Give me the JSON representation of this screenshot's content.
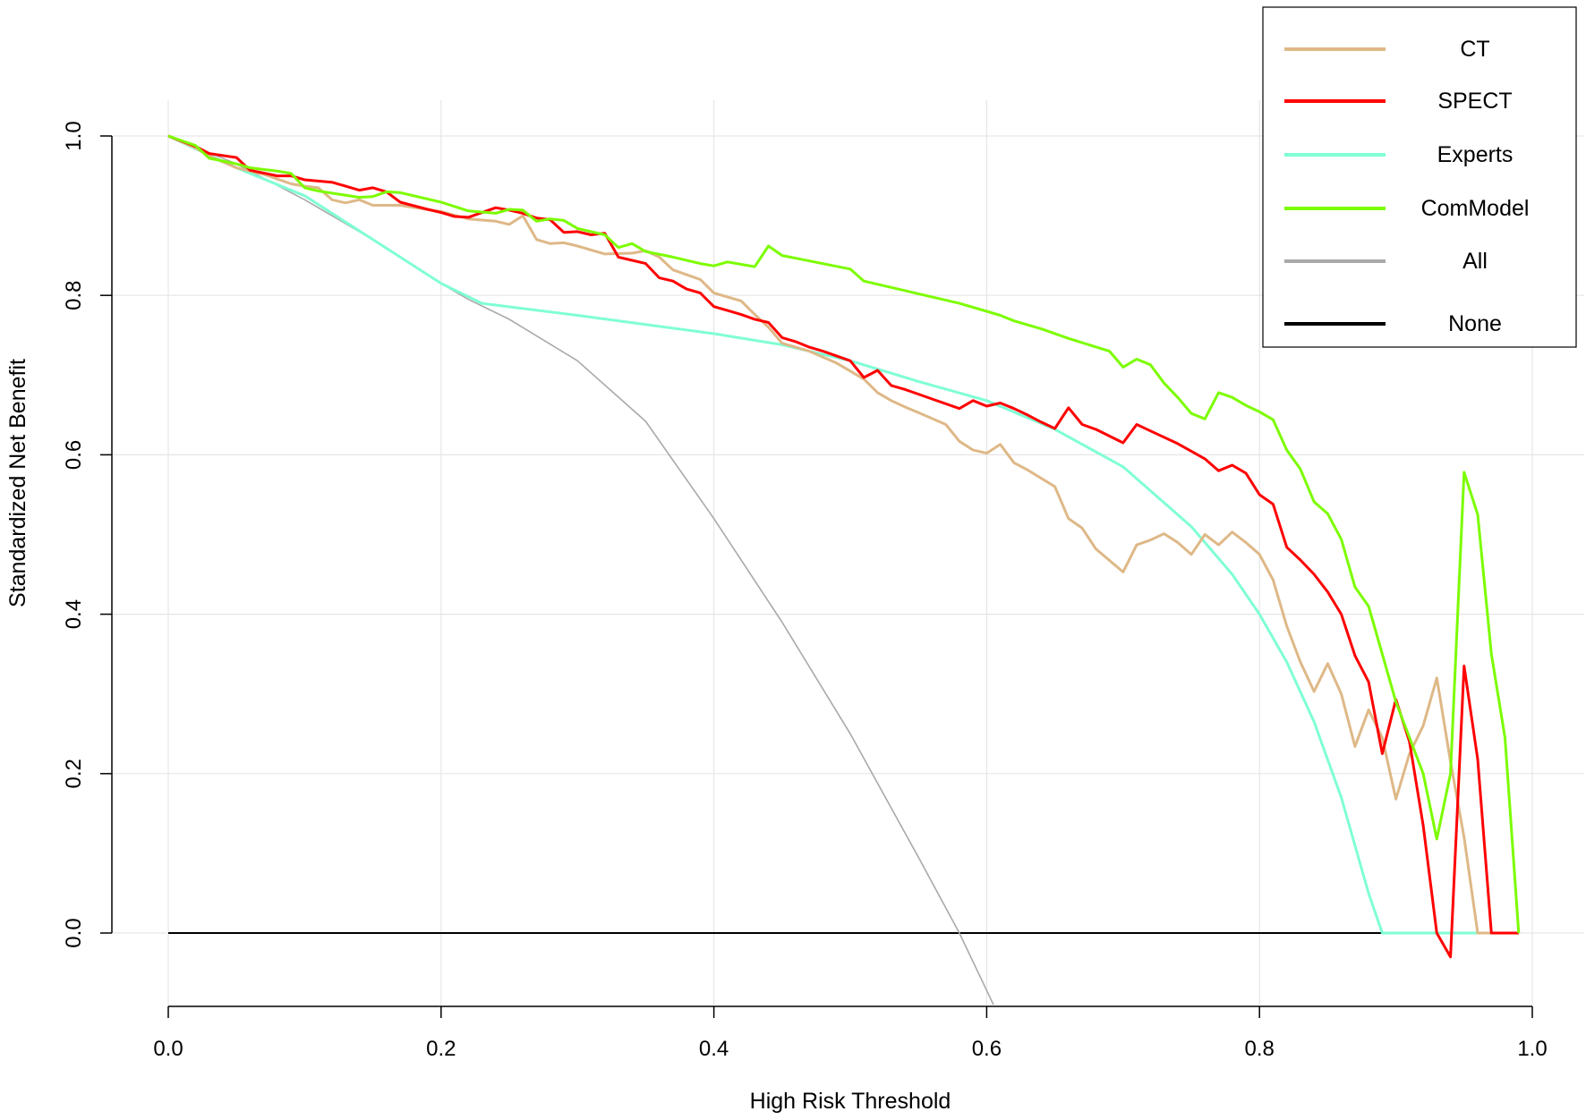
{
  "chart_data": {
    "type": "line",
    "title": "",
    "xlabel": "High Risk Threshold",
    "ylabel": "Standardized Net Benefit",
    "xlim": [
      0.0,
      1.0
    ],
    "ylim": [
      -0.1,
      1.05
    ],
    "x_ticks": [
      "0.0",
      "0.2",
      "0.4",
      "0.6",
      "0.8",
      "1.0"
    ],
    "y_ticks": [
      "0.0",
      "0.2",
      "0.4",
      "0.6",
      "0.8",
      "1.0"
    ],
    "grid": true,
    "legend_position": "top-right",
    "series": [
      {
        "name": "CT",
        "color": "#DEB887",
        "points": [
          [
            0.0,
            1.0
          ],
          [
            0.02,
            0.985
          ],
          [
            0.03,
            0.975
          ],
          [
            0.05,
            0.96
          ],
          [
            0.07,
            0.952
          ],
          [
            0.09,
            0.94
          ],
          [
            0.1,
            0.937
          ],
          [
            0.11,
            0.935
          ],
          [
            0.12,
            0.92
          ],
          [
            0.13,
            0.916
          ],
          [
            0.14,
            0.92
          ],
          [
            0.15,
            0.913
          ],
          [
            0.17,
            0.913
          ],
          [
            0.2,
            0.905
          ],
          [
            0.22,
            0.896
          ],
          [
            0.24,
            0.893
          ],
          [
            0.25,
            0.889
          ],
          [
            0.26,
            0.9
          ],
          [
            0.27,
            0.87
          ],
          [
            0.28,
            0.865
          ],
          [
            0.29,
            0.866
          ],
          [
            0.3,
            0.862
          ],
          [
            0.32,
            0.852
          ],
          [
            0.34,
            0.853
          ],
          [
            0.35,
            0.856
          ],
          [
            0.36,
            0.848
          ],
          [
            0.37,
            0.832
          ],
          [
            0.39,
            0.82
          ],
          [
            0.4,
            0.803
          ],
          [
            0.42,
            0.793
          ],
          [
            0.43,
            0.776
          ],
          [
            0.44,
            0.76
          ],
          [
            0.45,
            0.74
          ],
          [
            0.47,
            0.73
          ],
          [
            0.49,
            0.715
          ],
          [
            0.5,
            0.705
          ],
          [
            0.51,
            0.695
          ],
          [
            0.52,
            0.678
          ],
          [
            0.53,
            0.668
          ],
          [
            0.54,
            0.66
          ],
          [
            0.55,
            0.653
          ],
          [
            0.57,
            0.638
          ],
          [
            0.58,
            0.617
          ],
          [
            0.59,
            0.606
          ],
          [
            0.6,
            0.602
          ],
          [
            0.61,
            0.613
          ],
          [
            0.62,
            0.59
          ],
          [
            0.63,
            0.581
          ],
          [
            0.65,
            0.56
          ],
          [
            0.66,
            0.52
          ],
          [
            0.67,
            0.508
          ],
          [
            0.68,
            0.482
          ],
          [
            0.7,
            0.453
          ],
          [
            0.71,
            0.487
          ],
          [
            0.72,
            0.493
          ],
          [
            0.73,
            0.501
          ],
          [
            0.74,
            0.49
          ],
          [
            0.75,
            0.475
          ],
          [
            0.76,
            0.5
          ],
          [
            0.77,
            0.487
          ],
          [
            0.78,
            0.503
          ],
          [
            0.79,
            0.49
          ],
          [
            0.8,
            0.475
          ],
          [
            0.81,
            0.443
          ],
          [
            0.82,
            0.385
          ],
          [
            0.83,
            0.34
          ],
          [
            0.84,
            0.303
          ],
          [
            0.85,
            0.338
          ],
          [
            0.86,
            0.3
          ],
          [
            0.87,
            0.234
          ],
          [
            0.88,
            0.28
          ],
          [
            0.89,
            0.245
          ],
          [
            0.9,
            0.168
          ],
          [
            0.91,
            0.225
          ],
          [
            0.92,
            0.26
          ],
          [
            0.93,
            0.32
          ],
          [
            0.94,
            0.215
          ],
          [
            0.95,
            0.12
          ],
          [
            0.96,
            0.0
          ],
          [
            0.99,
            0.0
          ]
        ]
      },
      {
        "name": "SPECT",
        "color": "#FF0000",
        "points": [
          [
            0.0,
            1.0
          ],
          [
            0.02,
            0.987
          ],
          [
            0.03,
            0.978
          ],
          [
            0.05,
            0.973
          ],
          [
            0.06,
            0.957
          ],
          [
            0.08,
            0.95
          ],
          [
            0.09,
            0.95
          ],
          [
            0.1,
            0.945
          ],
          [
            0.12,
            0.942
          ],
          [
            0.13,
            0.937
          ],
          [
            0.14,
            0.932
          ],
          [
            0.15,
            0.935
          ],
          [
            0.16,
            0.93
          ],
          [
            0.17,
            0.917
          ],
          [
            0.19,
            0.908
          ],
          [
            0.2,
            0.904
          ],
          [
            0.21,
            0.899
          ],
          [
            0.22,
            0.898
          ],
          [
            0.24,
            0.91
          ],
          [
            0.25,
            0.907
          ],
          [
            0.26,
            0.903
          ],
          [
            0.27,
            0.897
          ],
          [
            0.28,
            0.895
          ],
          [
            0.29,
            0.879
          ],
          [
            0.3,
            0.88
          ],
          [
            0.31,
            0.876
          ],
          [
            0.32,
            0.878
          ],
          [
            0.33,
            0.848
          ],
          [
            0.34,
            0.844
          ],
          [
            0.35,
            0.84
          ],
          [
            0.36,
            0.822
          ],
          [
            0.37,
            0.818
          ],
          [
            0.38,
            0.808
          ],
          [
            0.39,
            0.803
          ],
          [
            0.4,
            0.786
          ],
          [
            0.41,
            0.781
          ],
          [
            0.42,
            0.776
          ],
          [
            0.43,
            0.77
          ],
          [
            0.44,
            0.766
          ],
          [
            0.45,
            0.747
          ],
          [
            0.46,
            0.742
          ],
          [
            0.47,
            0.735
          ],
          [
            0.48,
            0.73
          ],
          [
            0.5,
            0.718
          ],
          [
            0.51,
            0.697
          ],
          [
            0.52,
            0.706
          ],
          [
            0.53,
            0.687
          ],
          [
            0.54,
            0.682
          ],
          [
            0.56,
            0.67
          ],
          [
            0.58,
            0.658
          ],
          [
            0.59,
            0.668
          ],
          [
            0.6,
            0.661
          ],
          [
            0.61,
            0.665
          ],
          [
            0.62,
            0.658
          ],
          [
            0.63,
            0.65
          ],
          [
            0.64,
            0.641
          ],
          [
            0.65,
            0.633
          ],
          [
            0.66,
            0.659
          ],
          [
            0.67,
            0.638
          ],
          [
            0.68,
            0.632
          ],
          [
            0.7,
            0.615
          ],
          [
            0.71,
            0.638
          ],
          [
            0.72,
            0.63
          ],
          [
            0.74,
            0.614
          ],
          [
            0.76,
            0.595
          ],
          [
            0.77,
            0.58
          ],
          [
            0.78,
            0.587
          ],
          [
            0.79,
            0.577
          ],
          [
            0.8,
            0.55
          ],
          [
            0.81,
            0.538
          ],
          [
            0.82,
            0.484
          ],
          [
            0.83,
            0.468
          ],
          [
            0.84,
            0.45
          ],
          [
            0.85,
            0.428
          ],
          [
            0.86,
            0.4
          ],
          [
            0.87,
            0.348
          ],
          [
            0.88,
            0.315
          ],
          [
            0.89,
            0.225
          ],
          [
            0.9,
            0.293
          ],
          [
            0.91,
            0.24
          ],
          [
            0.92,
            0.135
          ],
          [
            0.93,
            0.0
          ],
          [
            0.94,
            -0.03
          ],
          [
            0.95,
            0.335
          ],
          [
            0.96,
            0.218
          ],
          [
            0.97,
            0.0
          ],
          [
            0.99,
            0.0
          ]
        ]
      },
      {
        "name": "Experts",
        "color": "#7FFFD4",
        "points": [
          [
            0.0,
            1.0
          ],
          [
            0.05,
            0.96
          ],
          [
            0.1,
            0.925
          ],
          [
            0.15,
            0.87
          ],
          [
            0.2,
            0.815
          ],
          [
            0.23,
            0.79
          ],
          [
            0.3,
            0.775
          ],
          [
            0.4,
            0.752
          ],
          [
            0.45,
            0.738
          ],
          [
            0.5,
            0.718
          ],
          [
            0.55,
            0.692
          ],
          [
            0.6,
            0.668
          ],
          [
            0.65,
            0.632
          ],
          [
            0.7,
            0.585
          ],
          [
            0.75,
            0.51
          ],
          [
            0.78,
            0.45
          ],
          [
            0.8,
            0.4
          ],
          [
            0.82,
            0.34
          ],
          [
            0.84,
            0.265
          ],
          [
            0.86,
            0.17
          ],
          [
            0.88,
            0.05
          ],
          [
            0.89,
            0.0
          ],
          [
            0.99,
            0.0
          ]
        ]
      },
      {
        "name": "ComModel",
        "color": "#7CFC00",
        "points": [
          [
            0.0,
            1.0
          ],
          [
            0.02,
            0.988
          ],
          [
            0.03,
            0.972
          ],
          [
            0.05,
            0.965
          ],
          [
            0.06,
            0.96
          ],
          [
            0.08,
            0.956
          ],
          [
            0.09,
            0.953
          ],
          [
            0.1,
            0.935
          ],
          [
            0.11,
            0.931
          ],
          [
            0.14,
            0.923
          ],
          [
            0.15,
            0.924
          ],
          [
            0.16,
            0.93
          ],
          [
            0.17,
            0.929
          ],
          [
            0.2,
            0.917
          ],
          [
            0.22,
            0.906
          ],
          [
            0.24,
            0.903
          ],
          [
            0.25,
            0.908
          ],
          [
            0.26,
            0.907
          ],
          [
            0.27,
            0.893
          ],
          [
            0.28,
            0.896
          ],
          [
            0.29,
            0.894
          ],
          [
            0.3,
            0.884
          ],
          [
            0.32,
            0.876
          ],
          [
            0.33,
            0.86
          ],
          [
            0.34,
            0.865
          ],
          [
            0.35,
            0.855
          ],
          [
            0.37,
            0.848
          ],
          [
            0.39,
            0.84
          ],
          [
            0.4,
            0.837
          ],
          [
            0.41,
            0.842
          ],
          [
            0.43,
            0.836
          ],
          [
            0.44,
            0.862
          ],
          [
            0.45,
            0.85
          ],
          [
            0.5,
            0.833
          ],
          [
            0.51,
            0.818
          ],
          [
            0.53,
            0.81
          ],
          [
            0.55,
            0.802
          ],
          [
            0.58,
            0.79
          ],
          [
            0.6,
            0.78
          ],
          [
            0.61,
            0.775
          ],
          [
            0.62,
            0.768
          ],
          [
            0.64,
            0.758
          ],
          [
            0.66,
            0.746
          ],
          [
            0.69,
            0.73
          ],
          [
            0.7,
            0.71
          ],
          [
            0.71,
            0.72
          ],
          [
            0.72,
            0.713
          ],
          [
            0.73,
            0.69
          ],
          [
            0.74,
            0.672
          ],
          [
            0.75,
            0.652
          ],
          [
            0.76,
            0.645
          ],
          [
            0.77,
            0.678
          ],
          [
            0.78,
            0.672
          ],
          [
            0.79,
            0.662
          ],
          [
            0.8,
            0.654
          ],
          [
            0.81,
            0.644
          ],
          [
            0.82,
            0.606
          ],
          [
            0.83,
            0.582
          ],
          [
            0.84,
            0.541
          ],
          [
            0.85,
            0.526
          ],
          [
            0.86,
            0.494
          ],
          [
            0.87,
            0.434
          ],
          [
            0.88,
            0.41
          ],
          [
            0.89,
            0.35
          ],
          [
            0.9,
            0.29
          ],
          [
            0.92,
            0.2
          ],
          [
            0.93,
            0.118
          ],
          [
            0.94,
            0.2
          ],
          [
            0.95,
            0.578
          ],
          [
            0.96,
            0.525
          ],
          [
            0.97,
            0.35
          ],
          [
            0.98,
            0.245
          ],
          [
            0.99,
            0.0
          ]
        ]
      },
      {
        "name": "All",
        "color": "#A9A9A9",
        "points": [
          [
            0.0,
            1.0
          ],
          [
            0.05,
            0.965
          ],
          [
            0.1,
            0.92
          ],
          [
            0.15,
            0.87
          ],
          [
            0.2,
            0.815
          ],
          [
            0.22,
            0.795
          ],
          [
            0.25,
            0.77
          ],
          [
            0.3,
            0.718
          ],
          [
            0.35,
            0.642
          ],
          [
            0.4,
            0.52
          ],
          [
            0.45,
            0.39
          ],
          [
            0.5,
            0.25
          ],
          [
            0.55,
            0.095
          ],
          [
            0.58,
            0.0
          ],
          [
            0.605,
            -0.09
          ]
        ]
      },
      {
        "name": "None",
        "color": "#000000",
        "points": [
          [
            0.0,
            0.0
          ],
          [
            0.99,
            0.0
          ]
        ]
      }
    ]
  }
}
